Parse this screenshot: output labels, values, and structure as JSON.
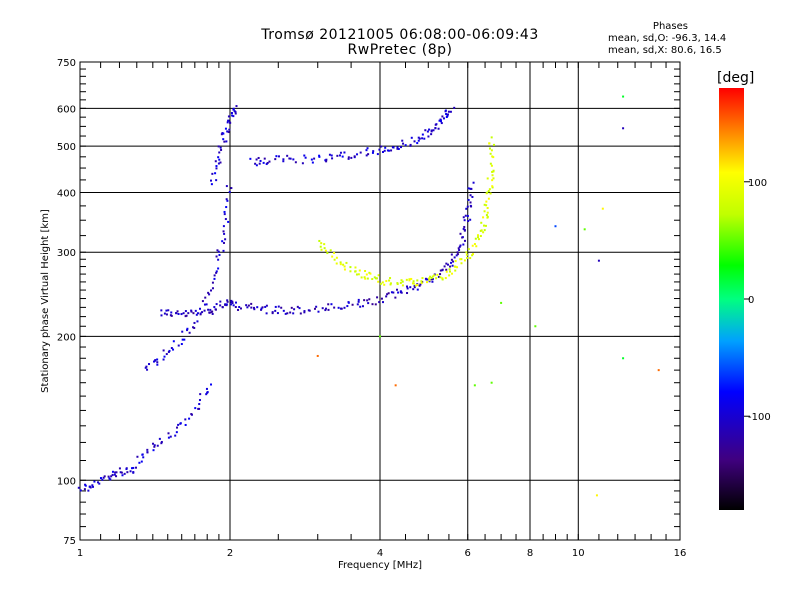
{
  "title": "Tromsø 20121005 06:08:00-06:09:43",
  "subtitle": "RwPretec (8p)",
  "stats": {
    "header": "Phases",
    "o_mode": "mean, sd,O:  -96.3, 14.4",
    "x_mode": "mean, sd,X:  80.6, 16.5"
  },
  "colorbar": {
    "unit": "[deg]",
    "range": [
      -180,
      180
    ],
    "ticks": [
      100,
      0,
      -100
    ],
    "tick_labels": [
      "100",
      "0",
      "-100"
    ]
  },
  "chart_data": {
    "type": "scatter",
    "xlabel": "Frequency [MHz]",
    "ylabel": "Stationary phase Virtual Height [km]",
    "x_scale": "log",
    "y_scale": "log",
    "xlim": [
      1,
      16
    ],
    "ylim": [
      75,
      750
    ],
    "grid": true,
    "x_ticks": [
      1,
      2,
      4,
      6,
      8,
      10,
      16
    ],
    "x_tick_labels": [
      "1",
      "2",
      "4",
      "6",
      "8",
      "10",
      "16"
    ],
    "y_ticks": [
      75,
      100,
      200,
      300,
      400,
      500,
      600,
      750
    ],
    "y_tick_labels": [
      "75",
      "100",
      "200",
      "300",
      "400",
      "500",
      "600",
      "750"
    ],
    "traces": [
      {
        "x": [
          1.45,
          1.6,
          1.8,
          1.95,
          2.05,
          2.3,
          2.6,
          3.0,
          3.5,
          4.0,
          4.5,
          5.0,
          5.5,
          5.8,
          6.0,
          6.1
        ],
        "y": [
          225,
          222,
          225,
          235,
          232,
          228,
          226,
          228,
          232,
          238,
          250,
          262,
          280,
          310,
          360,
          420
        ],
        "phase": -110
      },
      {
        "x": [
          1.35,
          1.5,
          1.7,
          1.85,
          1.95,
          2.0
        ],
        "y": [
          170,
          185,
          210,
          260,
          320,
          420
        ],
        "phase": -100
      },
      {
        "x": [
          1.3,
          1.45,
          1.65,
          1.85
        ],
        "y": [
          110,
          120,
          135,
          160
        ],
        "phase": -100
      },
      {
        "x": [
          1.0,
          1.1,
          1.2,
          1.3
        ],
        "y": [
          95,
          100,
          104,
          106
        ],
        "phase": -100
      },
      {
        "x": [
          1.85,
          1.92,
          2.0,
          2.05
        ],
        "y": [
          420,
          500,
          560,
          610
        ],
        "phase": -100
      },
      {
        "x": [
          2.2,
          2.5,
          3.0,
          3.5,
          4.0,
          4.5,
          5.0,
          5.3,
          5.6
        ],
        "y": [
          462,
          468,
          470,
          480,
          490,
          505,
          530,
          560,
          600
        ],
        "phase": -100
      },
      {
        "x": [
          3.0,
          3.3,
          3.7,
          4.0,
          4.5,
          5.0,
          5.5,
          6.0,
          6.4,
          6.6,
          6.7,
          6.7
        ],
        "y": [
          315,
          285,
          270,
          262,
          258,
          262,
          272,
          295,
          330,
          380,
          440,
          520
        ],
        "phase": 90
      }
    ],
    "scattered_points": [
      {
        "x": 12.3,
        "y": 635,
        "phase": 20
      },
      {
        "x": 12.3,
        "y": 545,
        "phase": -110
      },
      {
        "x": 11.2,
        "y": 370,
        "phase": 110
      },
      {
        "x": 10.3,
        "y": 335,
        "phase": 50
      },
      {
        "x": 9.0,
        "y": 340,
        "phase": -60
      },
      {
        "x": 11.0,
        "y": 288,
        "phase": -110
      },
      {
        "x": 7.0,
        "y": 235,
        "phase": 50
      },
      {
        "x": 8.2,
        "y": 210,
        "phase": 50
      },
      {
        "x": 12.3,
        "y": 180,
        "phase": 20
      },
      {
        "x": 14.5,
        "y": 170,
        "phase": 150
      },
      {
        "x": 10.9,
        "y": 93,
        "phase": 110
      },
      {
        "x": 6.2,
        "y": 158,
        "phase": 50
      },
      {
        "x": 6.7,
        "y": 160,
        "phase": 50
      },
      {
        "x": 4.3,
        "y": 158,
        "phase": 150
      },
      {
        "x": 3.0,
        "y": 182,
        "phase": 150
      },
      {
        "x": 4.0,
        "y": 200,
        "phase": 50
      }
    ]
  }
}
